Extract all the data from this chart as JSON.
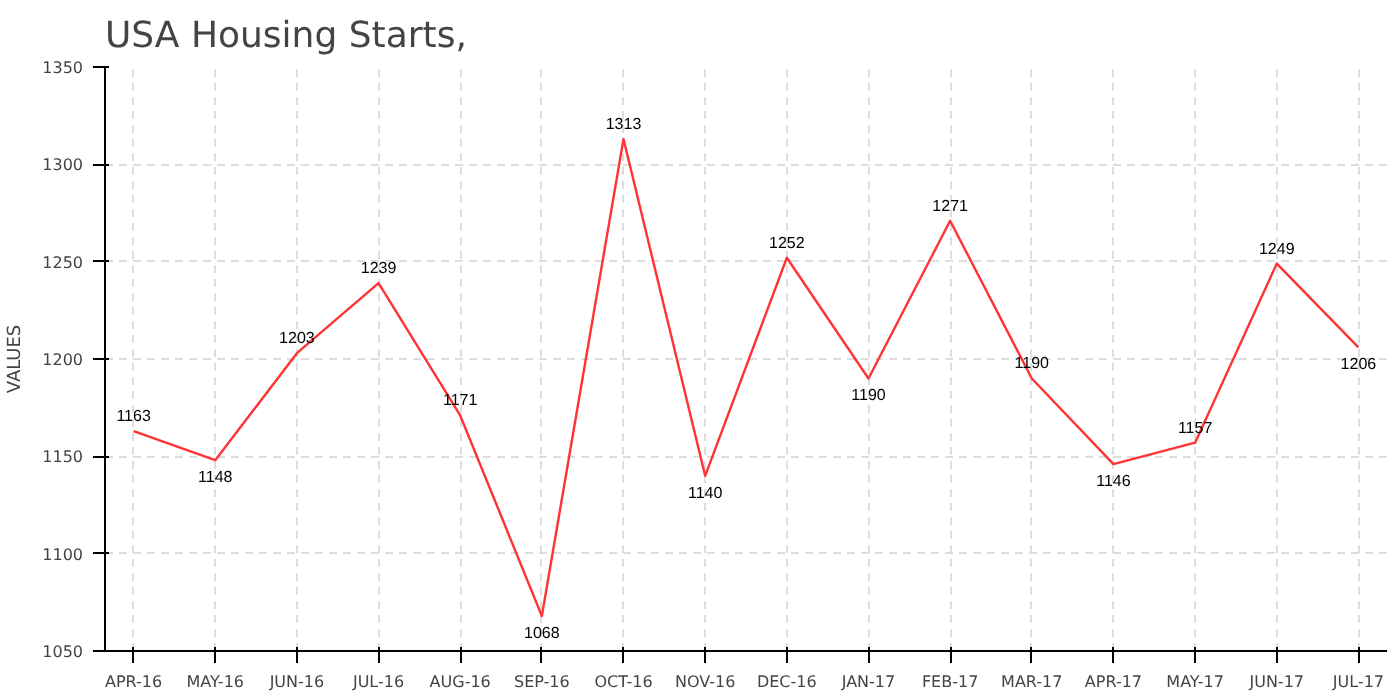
{
  "chart_data": {
    "type": "line",
    "title": "USA Housing Starts,",
    "ylabel": "VALUES",
    "categories": [
      "APR-16",
      "MAY-16",
      "JUN-16",
      "JUL-16",
      "AUG-16",
      "SEP-16",
      "OCT-16",
      "NOV-16",
      "DEC-16",
      "JAN-17",
      "FEB-17",
      "MAR-17",
      "APR-17",
      "MAY-17",
      "JUN-17",
      "JUL-17"
    ],
    "series": [
      {
        "color": "#ff3333",
        "values": [
          1163,
          1148,
          1203,
          1239,
          1171,
          1068,
          1313,
          1140,
          1252,
          1190,
          1271,
          1190,
          1146,
          1157,
          1249,
          1206
        ]
      }
    ],
    "ylim": [
      1050,
      1350
    ],
    "yticks": [
      1050,
      1100,
      1150,
      1200,
      1250,
      1300,
      1350
    ],
    "grid": true,
    "data_labels": true,
    "line_style": "solid"
  }
}
